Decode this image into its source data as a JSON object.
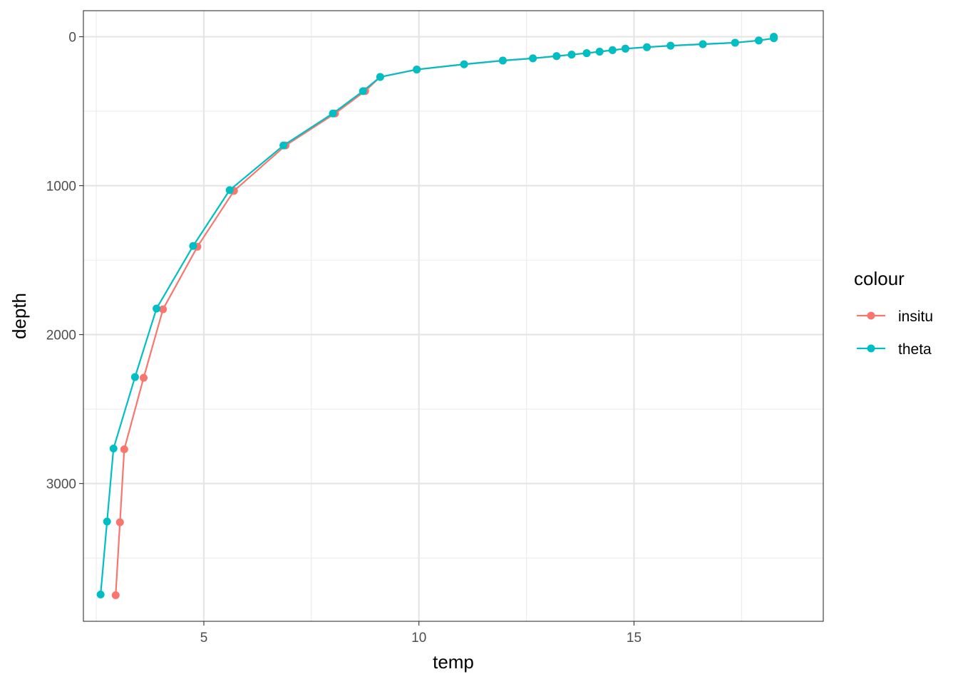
{
  "chart_data": {
    "type": "line",
    "title": "",
    "xlabel": "temp",
    "ylabel": "depth",
    "xlim": [
      2.2,
      19.4
    ],
    "ylim": [
      3925,
      -175
    ],
    "y_reversed": true,
    "grid": true,
    "x_ticks": [
      5,
      10,
      15
    ],
    "y_ticks": [
      0,
      1000,
      2000,
      3000
    ],
    "x_minor_ticks": [
      2.5,
      7.5,
      12.5,
      17.5
    ],
    "y_minor_ticks": [
      500,
      1500,
      2500,
      3500
    ],
    "legend": {
      "title": "colour",
      "position": "right"
    },
    "series": [
      {
        "name": "insitu",
        "color": "#F8766D",
        "points": [
          [
            18.25,
            0
          ],
          [
            18.25,
            10
          ],
          [
            17.9,
            25
          ],
          [
            17.35,
            40
          ],
          [
            16.6,
            50
          ],
          [
            15.85,
            60
          ],
          [
            15.3,
            70
          ],
          [
            14.8,
            80
          ],
          [
            14.5,
            90
          ],
          [
            14.2,
            100
          ],
          [
            13.9,
            110
          ],
          [
            13.55,
            120
          ],
          [
            13.2,
            130
          ],
          [
            12.65,
            145
          ],
          [
            11.95,
            160
          ],
          [
            11.05,
            185
          ],
          [
            9.95,
            220
          ],
          [
            9.1,
            270
          ],
          [
            8.75,
            365
          ],
          [
            8.05,
            515
          ],
          [
            6.9,
            730
          ],
          [
            5.7,
            1035
          ],
          [
            4.85,
            1410
          ],
          [
            4.05,
            1830
          ],
          [
            3.6,
            2290
          ],
          [
            3.15,
            2770
          ],
          [
            3.05,
            3260
          ],
          [
            2.95,
            3750
          ]
        ]
      },
      {
        "name": "theta",
        "color": "#00BFC4",
        "points": [
          [
            18.25,
            0
          ],
          [
            18.25,
            10
          ],
          [
            17.9,
            25
          ],
          [
            17.35,
            40
          ],
          [
            16.6,
            50
          ],
          [
            15.85,
            60
          ],
          [
            15.3,
            70
          ],
          [
            14.8,
            80
          ],
          [
            14.5,
            90
          ],
          [
            14.2,
            100
          ],
          [
            13.9,
            110
          ],
          [
            13.55,
            120
          ],
          [
            13.2,
            130
          ],
          [
            12.65,
            145
          ],
          [
            11.95,
            160
          ],
          [
            11.05,
            185
          ],
          [
            9.95,
            220
          ],
          [
            9.1,
            270
          ],
          [
            8.7,
            365
          ],
          [
            8.0,
            515
          ],
          [
            6.85,
            730
          ],
          [
            5.6,
            1030
          ],
          [
            4.75,
            1405
          ],
          [
            3.9,
            1825
          ],
          [
            3.4,
            2285
          ],
          [
            2.9,
            2765
          ],
          [
            2.75,
            3255
          ],
          [
            2.6,
            3745
          ]
        ]
      }
    ]
  }
}
